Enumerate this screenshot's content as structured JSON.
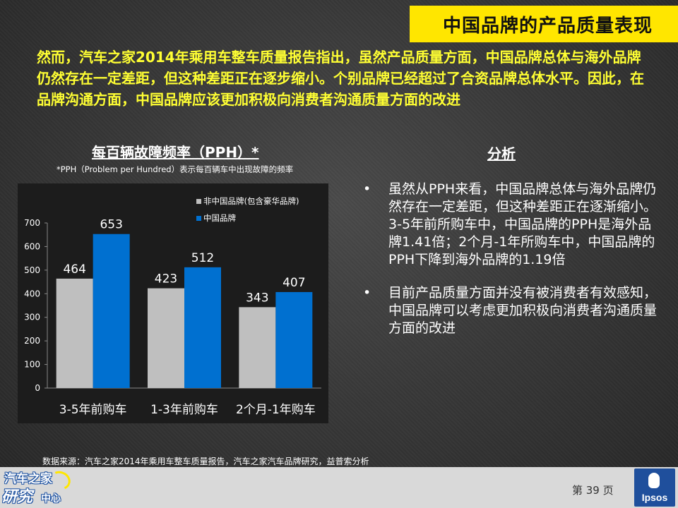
{
  "header": {
    "title": "中国品牌的产品质量表现"
  },
  "intro": "然而，汽车之家2014年乘用车整车质量报告指出，虽然产品质量方面，中国品牌总体与海外品牌仍然存在一定差距，但这种差距正在逐步缩小。个别品牌已经超过了合资品牌总体水平。因此，在品牌沟通方面，中国品牌应该更加积极向消费者沟通质量方面的改进",
  "chart_header": {
    "title": "每百辆故障频率（PPH）*",
    "subtitle": "*PPH（Problem per Hundred）表示每百辆车中出现故障的频率"
  },
  "analysis": {
    "title": "分析",
    "bullet_symbol": "•",
    "bullets": [
      "虽然从PPH来看，中国品牌总体与海外品牌仍然存在一定差距，但这种差距正在逐渐缩小。3-5年前所购车中，中国品牌的PPH是海外品牌1.41倍；2个月-1年所购车中，中国品牌的PPH下降到海外品牌的1.19倍",
      "目前产品质量方面并没有被消费者有效感知，中国品牌可以考虑更加积极向消费者沟通质量方面的改进"
    ]
  },
  "source": "数据来源：汽车之家2014年乘用车整车质量报告，汽车之家汽车品牌研究，益普索分析",
  "footer": {
    "page_label": "第 39 页",
    "logo_left": {
      "line1": "汽车之家",
      "line2": "研究",
      "line3": "中心"
    },
    "logo_right": "Ipsos"
  },
  "colors": {
    "accent": "#ffe600",
    "intro_text": "#ffff33",
    "footer_bg": "#d9d9d9",
    "ipsos_blue": "#1f4f9c"
  },
  "chart_data": {
    "type": "bar",
    "categories": [
      "3-5年前购车",
      "1-3年前购车",
      "2个月-1年购车"
    ],
    "series": [
      {
        "name": "非中国品牌(包含豪华品牌)",
        "values": [
          464,
          423,
          343
        ],
        "color": "#bfbfbf"
      },
      {
        "name": "中国品牌",
        "values": [
          653,
          512,
          407
        ],
        "color": "#0070d0"
      }
    ],
    "ylim": [
      0,
      700
    ],
    "yticks": [
      0,
      100,
      200,
      300,
      400,
      500,
      600,
      700
    ],
    "legend_position": "top-right",
    "data_labels": true,
    "grid": false
  }
}
